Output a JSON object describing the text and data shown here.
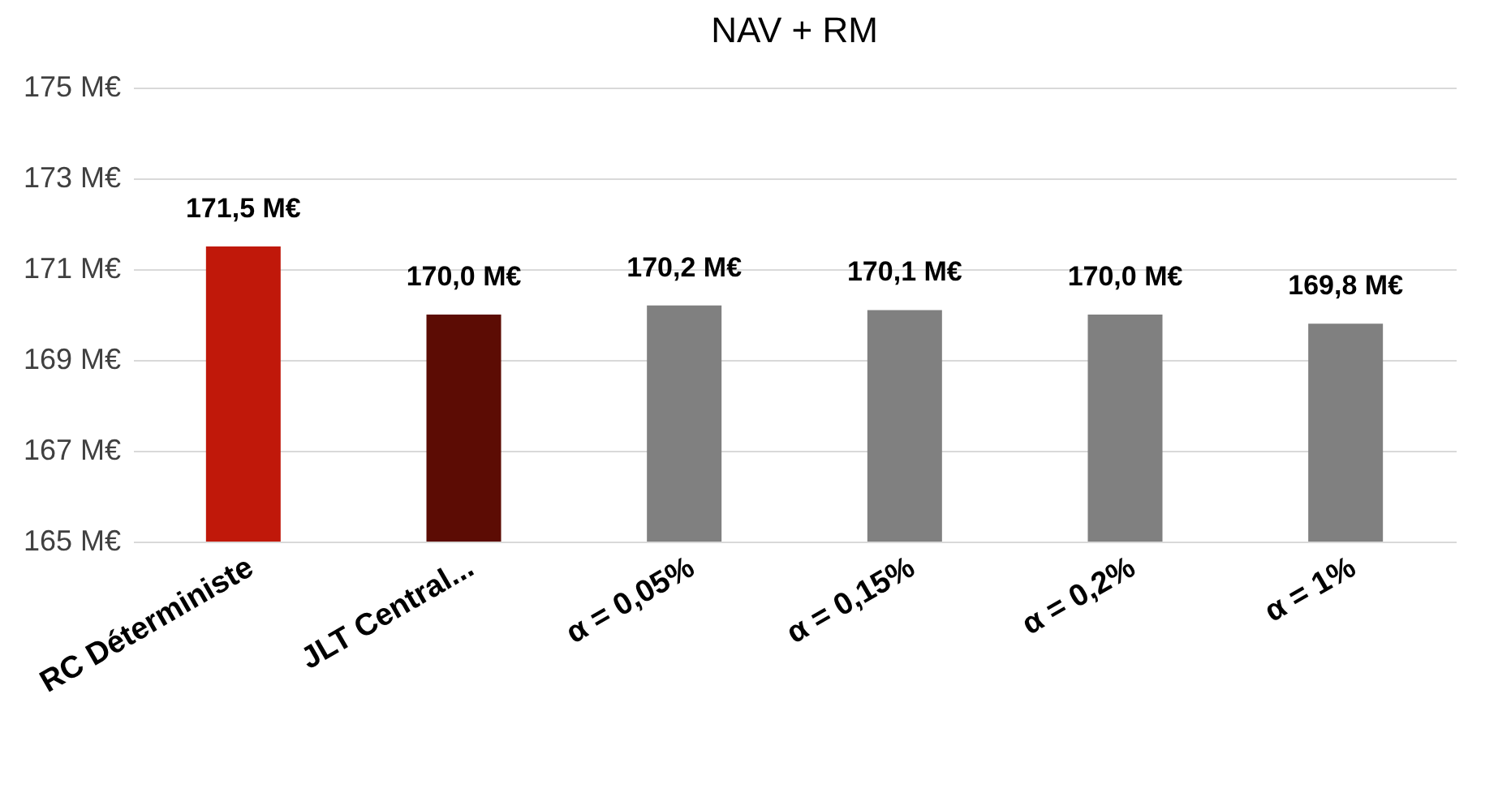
{
  "chart_data": {
    "type": "bar",
    "title": "NAV + RM",
    "categories": [
      "RC Déterministe",
      "JLT Central...",
      "α = 0,05%",
      "α = 0,15%",
      "α = 0,2%",
      "α = 1%"
    ],
    "values": [
      171.5,
      170.0,
      170.2,
      170.1,
      170.0,
      169.8
    ],
    "colors": [
      "#c0180a",
      "#5c0c04",
      "#808080",
      "#808080",
      "#808080",
      "#808080"
    ],
    "value_labels": [
      "171,5  M€",
      "170,0  M€",
      "170,2  M€",
      "170,1  M€",
      "170,0  M€",
      "169,8  M€"
    ],
    "ylim": [
      165,
      175
    ],
    "yticks": [
      {
        "value": 165,
        "label": "165  M€"
      },
      {
        "value": 167,
        "label": "167  M€"
      },
      {
        "value": 169,
        "label": "169  M€"
      },
      {
        "value": 171,
        "label": "171  M€"
      },
      {
        "value": 173,
        "label": "173  M€"
      },
      {
        "value": 175,
        "label": "175  M€"
      }
    ],
    "grid": "y"
  }
}
